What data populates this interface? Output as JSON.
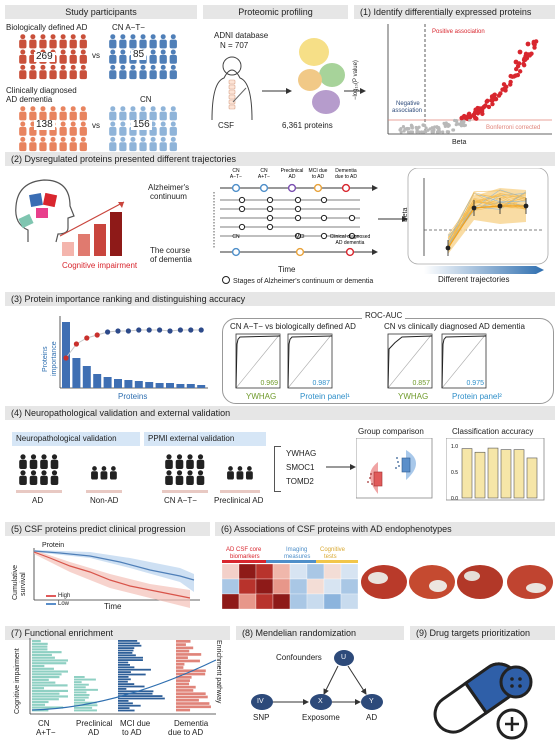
{
  "headers": {
    "study": "Study participants",
    "proteomic": "Proteomic profiling",
    "identify": "(1) Identify differentially expressed proteins",
    "trajectories": "(2) Dysregulated proteins presented different trajectories",
    "ranking": "(3) Protein importance ranking and distinguishing accuracy",
    "neuro": "(4) Neuropathological validation and external validation",
    "predict": "(5) CSF proteins predict clinical progression",
    "endo": "(6) Associations of CSF proteins with AD endophenotypes",
    "functional": "(7) Functional enrichment",
    "mendelian": "(8) Mendelian randomization",
    "drug": "(9) Drug targets prioritization"
  },
  "study": {
    "bio_ad_label": "Biologically defined AD",
    "bio_ad_n": "269",
    "cn_atminus_label": "CN A−T−",
    "cn_atminus_n": "85",
    "vs": "vs",
    "clin_ad_label1": "Clinically diagnosed",
    "clin_ad_label2": "AD dementia",
    "clin_ad_n": "138",
    "cn_label": "CN",
    "cn_n": "156"
  },
  "proteomic": {
    "db_line1": "ADNI database",
    "db_line2": "N = 707",
    "csf": "CSF",
    "proteins": "6,361 proteins"
  },
  "identify": {
    "y_label": "−log₁₀(P value)",
    "x_label": "Beta",
    "positive": "Positive association",
    "negative1": "Negative",
    "negative2": "association",
    "bonferroni": "Bonferroni corrected"
  },
  "trajectories": {
    "continuum1": "Alzheimer's",
    "continuum2": "continuum",
    "course1": "The course",
    "course2": "of dementia",
    "time": "Time",
    "stages_legend": "Stages of Alzheimer's continuum or dementia",
    "cognitive": "Cognitive impairment",
    "beta": "Beta",
    "different": "Different trajectories",
    "stages": [
      "CN A−T−",
      "CN A+T−",
      "Preclinical AD",
      "MCI due to AD",
      "Dementia due to AD"
    ],
    "course_stages": [
      "CN",
      "MCI",
      "Clinical diagnosed AD dementia"
    ]
  },
  "ranking": {
    "y_label1": "Proteins",
    "y_label2": "importance",
    "x_label": "Proteins",
    "roc_title": "ROC-AUC",
    "left_title": "CN A−T− vs biologically defined AD",
    "right_title": "CN vs clinically diagnosed AD dementia",
    "auc": [
      "0.969",
      "0.987",
      "0.857",
      "0.975"
    ],
    "roc_labels": [
      "YWHAG",
      "Protein panel¹",
      "YWHAG",
      "Protein panel²"
    ]
  },
  "neuro": {
    "neuro_box": "Neuropathological validation",
    "ppmi_box": "PPMI external validation",
    "ad": "AD",
    "non_ad": "Non-AD",
    "cn_atminus": "CN A−T−",
    "preclinical": "Preclinical AD",
    "proteins": [
      "YWHAG",
      "SMOC1",
      "TOMD2"
    ],
    "group_comparison": "Group comparison",
    "classification": "Classification accuracy",
    "class_values": [
      0.95,
      0.88,
      0.96,
      0.93,
      0.93,
      0.77
    ]
  },
  "predict": {
    "protein": "Protein",
    "y_label1": "Cumulative",
    "y_label2": "survival",
    "x_label": "Time",
    "high": "High",
    "low": "Low"
  },
  "endo": {
    "csf_core1": "AD CSF core",
    "csf_core2": "biomarkers",
    "imaging1": "Imaging",
    "imaging2": "measures",
    "cognitive1": "Cognitive",
    "cognitive2": "tests"
  },
  "functional": {
    "y_left": "Cognitive impairment",
    "y_right": "Enrichment pathway",
    "stages": [
      [
        "CN",
        "A+T−"
      ],
      [
        "Preclinical",
        "AD"
      ],
      [
        "MCI due",
        "to AD"
      ],
      [
        "Dementia",
        "due to AD"
      ]
    ]
  },
  "mendelian": {
    "confounders": "Confounders",
    "u": "U",
    "iv": "IV",
    "x": "X",
    "y": "Y",
    "snp": "SNP",
    "exposome": "Exposome",
    "ad": "AD"
  },
  "colors": {
    "header_bg": "#e6e6e6",
    "ad_red": "#c9503a",
    "cn_blue": "#4f7fb8",
    "dementia_orange": "#e8845f",
    "cn_light_blue": "#8fb4d9",
    "accent_red": "#d8262e",
    "trajectory_yellow": "#f6c86a",
    "dark_navy": "#2d4a7a"
  }
}
